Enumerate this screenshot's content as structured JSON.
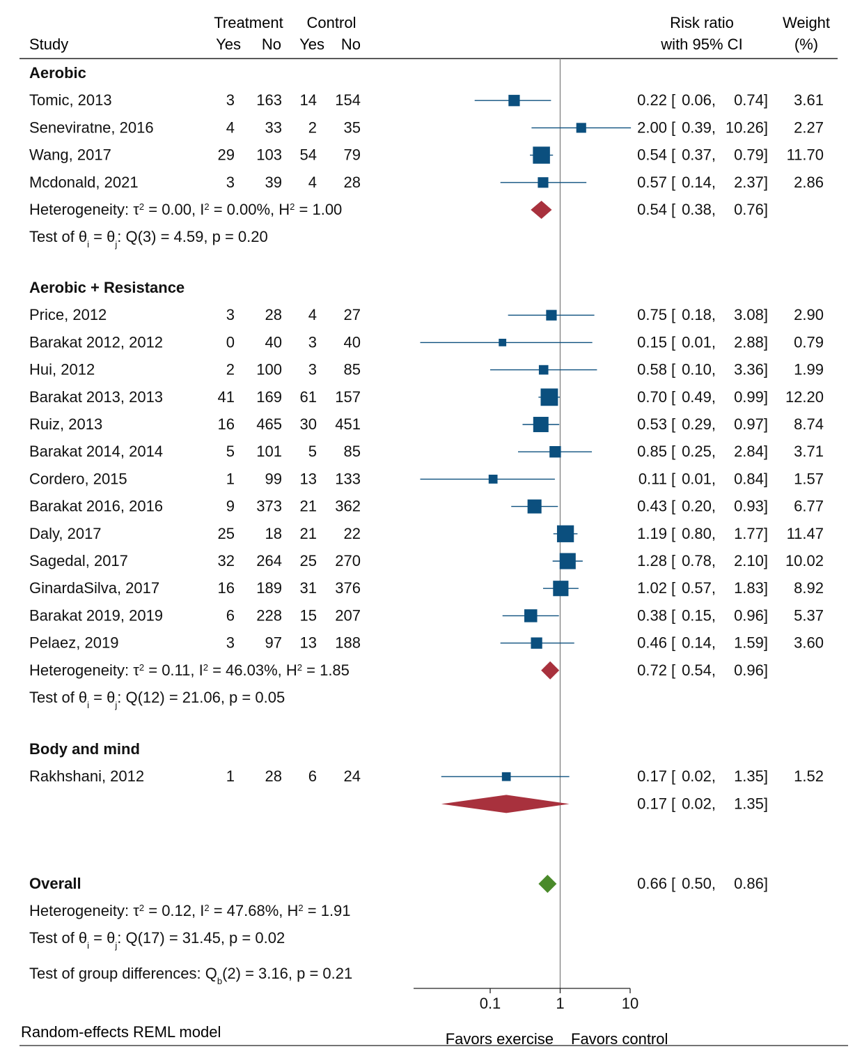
{
  "header": {
    "study": "Study",
    "treatment": "Treatment",
    "control": "Control",
    "yes": "Yes",
    "no": "No",
    "risk_ratio_1": "Risk ratio",
    "risk_ratio_2": "with 95% CI",
    "weight_1": "Weight",
    "weight_2": "(%)"
  },
  "chart_data": {
    "type": "forest",
    "scale": "log",
    "x_ticks": [
      0.1,
      1,
      10
    ],
    "x_tick_labels": [
      "0.1",
      "1",
      "10"
    ],
    "null_line": 1,
    "xlabel_left": "Favors exercise",
    "xlabel_right": "Favors control",
    "footnote": "Random-effects REML model",
    "groups": [
      {
        "name": "Aerobic",
        "studies": [
          {
            "study": "Tomic, 2013",
            "t_yes": 3,
            "t_no": 163,
            "c_yes": 14,
            "c_no": 154,
            "rr": 0.22,
            "lo": 0.06,
            "hi": 0.74,
            "weight": 3.61,
            "rr_txt": "0.22",
            "lo_txt": "0.06",
            "hi_txt": "0.74",
            "w_txt": "3.61"
          },
          {
            "study": "Seneviratne, 2016",
            "t_yes": 4,
            "t_no": 33,
            "c_yes": 2,
            "c_no": 35,
            "rr": 2.0,
            "lo": 0.39,
            "hi": 10.26,
            "weight": 2.27,
            "rr_txt": "2.00",
            "lo_txt": "0.39",
            "hi_txt": "10.26",
            "w_txt": "2.27"
          },
          {
            "study": "Wang, 2017",
            "t_yes": 29,
            "t_no": 103,
            "c_yes": 54,
            "c_no": 79,
            "rr": 0.54,
            "lo": 0.37,
            "hi": 0.79,
            "weight": 11.7,
            "rr_txt": "0.54",
            "lo_txt": "0.37",
            "hi_txt": "0.79",
            "w_txt": "11.70"
          },
          {
            "study": "Mcdonald, 2021",
            "t_yes": 3,
            "t_no": 39,
            "c_yes": 4,
            "c_no": 28,
            "rr": 0.57,
            "lo": 0.14,
            "hi": 2.37,
            "weight": 2.86,
            "rr_txt": "0.57",
            "lo_txt": "0.14",
            "hi_txt": "2.37",
            "w_txt": "2.86"
          }
        ],
        "heterogeneity": {
          "tau2": "0.00",
          "i2": "0.00%",
          "h2": "1.00"
        },
        "pooled": {
          "rr": 0.54,
          "lo": 0.38,
          "hi": 0.76,
          "rr_txt": "0.54",
          "lo_txt": "0.38",
          "hi_txt": "0.76"
        },
        "test": {
          "df": "3",
          "q": "4.59",
          "p": "0.20"
        }
      },
      {
        "name": "Aerobic + Resistance",
        "studies": [
          {
            "study": "Price, 2012",
            "t_yes": 3,
            "t_no": 28,
            "c_yes": 4,
            "c_no": 27,
            "rr": 0.75,
            "lo": 0.18,
            "hi": 3.08,
            "weight": 2.9,
            "rr_txt": "0.75",
            "lo_txt": "0.18",
            "hi_txt": "3.08",
            "w_txt": "2.90"
          },
          {
            "study": "Barakat 2012, 2012",
            "t_yes": 0,
            "t_no": 40,
            "c_yes": 3,
            "c_no": 40,
            "rr": 0.15,
            "lo": 0.01,
            "hi": 2.88,
            "weight": 0.79,
            "rr_txt": "0.15",
            "lo_txt": "0.01",
            "hi_txt": "2.88",
            "w_txt": "0.79"
          },
          {
            "study": "Hui, 2012",
            "t_yes": 2,
            "t_no": 100,
            "c_yes": 3,
            "c_no": 85,
            "rr": 0.58,
            "lo": 0.1,
            "hi": 3.36,
            "weight": 1.99,
            "rr_txt": "0.58",
            "lo_txt": "0.10",
            "hi_txt": "3.36",
            "w_txt": "1.99"
          },
          {
            "study": "Barakat 2013, 2013",
            "t_yes": 41,
            "t_no": 169,
            "c_yes": 61,
            "c_no": 157,
            "rr": 0.7,
            "lo": 0.49,
            "hi": 0.99,
            "weight": 12.2,
            "rr_txt": "0.70",
            "lo_txt": "0.49",
            "hi_txt": "0.99",
            "w_txt": "12.20"
          },
          {
            "study": "Ruiz, 2013",
            "t_yes": 16,
            "t_no": 465,
            "c_yes": 30,
            "c_no": 451,
            "rr": 0.53,
            "lo": 0.29,
            "hi": 0.97,
            "weight": 8.74,
            "rr_txt": "0.53",
            "lo_txt": "0.29",
            "hi_txt": "0.97",
            "w_txt": "8.74"
          },
          {
            "study": "Barakat 2014, 2014",
            "t_yes": 5,
            "t_no": 101,
            "c_yes": 5,
            "c_no": 85,
            "rr": 0.85,
            "lo": 0.25,
            "hi": 2.84,
            "weight": 3.71,
            "rr_txt": "0.85",
            "lo_txt": "0.25",
            "hi_txt": "2.84",
            "w_txt": "3.71"
          },
          {
            "study": "Cordero, 2015",
            "t_yes": 1,
            "t_no": 99,
            "c_yes": 13,
            "c_no": 133,
            "rr": 0.11,
            "lo": 0.01,
            "hi": 0.84,
            "weight": 1.57,
            "rr_txt": "0.11",
            "lo_txt": "0.01",
            "hi_txt": "0.84",
            "w_txt": "1.57"
          },
          {
            "study": "Barakat 2016, 2016",
            "t_yes": 9,
            "t_no": 373,
            "c_yes": 21,
            "c_no": 362,
            "rr": 0.43,
            "lo": 0.2,
            "hi": 0.93,
            "weight": 6.77,
            "rr_txt": "0.43",
            "lo_txt": "0.20",
            "hi_txt": "0.93",
            "w_txt": "6.77"
          },
          {
            "study": "Daly, 2017",
            "t_yes": 25,
            "t_no": 18,
            "c_yes": 21,
            "c_no": 22,
            "rr": 1.19,
            "lo": 0.8,
            "hi": 1.77,
            "weight": 11.47,
            "rr_txt": "1.19",
            "lo_txt": "0.80",
            "hi_txt": "1.77",
            "w_txt": "11.47"
          },
          {
            "study": "Sagedal, 2017",
            "t_yes": 32,
            "t_no": 264,
            "c_yes": 25,
            "c_no": 270,
            "rr": 1.28,
            "lo": 0.78,
            "hi": 2.1,
            "weight": 10.02,
            "rr_txt": "1.28",
            "lo_txt": "0.78",
            "hi_txt": "2.10",
            "w_txt": "10.02"
          },
          {
            "study": "GinardaSilva, 2017",
            "t_yes": 16,
            "t_no": 189,
            "c_yes": 31,
            "c_no": 376,
            "rr": 1.02,
            "lo": 0.57,
            "hi": 1.83,
            "weight": 8.92,
            "rr_txt": "1.02",
            "lo_txt": "0.57",
            "hi_txt": "1.83",
            "w_txt": "8.92"
          },
          {
            "study": "Barakat 2019, 2019",
            "t_yes": 6,
            "t_no": 228,
            "c_yes": 15,
            "c_no": 207,
            "rr": 0.38,
            "lo": 0.15,
            "hi": 0.96,
            "weight": 5.37,
            "rr_txt": "0.38",
            "lo_txt": "0.15",
            "hi_txt": "0.96",
            "w_txt": "5.37"
          },
          {
            "study": "Pelaez, 2019",
            "t_yes": 3,
            "t_no": 97,
            "c_yes": 13,
            "c_no": 188,
            "rr": 0.46,
            "lo": 0.14,
            "hi": 1.59,
            "weight": 3.6,
            "rr_txt": "0.46",
            "lo_txt": "0.14",
            "hi_txt": "1.59",
            "w_txt": "3.60"
          }
        ],
        "heterogeneity": {
          "tau2": "0.11",
          "i2": "46.03%",
          "h2": "1.85"
        },
        "pooled": {
          "rr": 0.72,
          "lo": 0.54,
          "hi": 0.96,
          "rr_txt": "0.72",
          "lo_txt": "0.54",
          "hi_txt": "0.96"
        },
        "test": {
          "df": "12",
          "q": "21.06",
          "p": "0.05"
        }
      },
      {
        "name": "Body and mind",
        "studies": [
          {
            "study": "Rakhshani, 2012",
            "t_yes": 1,
            "t_no": 28,
            "c_yes": 6,
            "c_no": 24,
            "rr": 0.17,
            "lo": 0.02,
            "hi": 1.35,
            "weight": 1.52,
            "rr_txt": "0.17",
            "lo_txt": "0.02",
            "hi_txt": "1.35",
            "w_txt": "1.52"
          }
        ],
        "pooled": {
          "rr": 0.17,
          "lo": 0.02,
          "hi": 1.35,
          "rr_txt": "0.17",
          "lo_txt": "0.02",
          "hi_txt": "1.35"
        }
      }
    ],
    "overall": {
      "label": "Overall",
      "rr": 0.66,
      "lo": 0.5,
      "hi": 0.86,
      "rr_txt": "0.66",
      "lo_txt": "0.50",
      "hi_txt": "0.86",
      "heterogeneity": {
        "tau2": "0.12",
        "i2": "47.68%",
        "h2": "1.91"
      },
      "test": {
        "df": "17",
        "q": "31.45",
        "p": "0.02"
      }
    },
    "group_differences": {
      "df": "2",
      "q": "3.16",
      "p": "0.21"
    },
    "colors": {
      "study": "#0b4f7e",
      "group_pooled": "#a8313d",
      "overall": "#4a8a2a",
      "text": "#111111",
      "null_line": "#808080"
    }
  }
}
